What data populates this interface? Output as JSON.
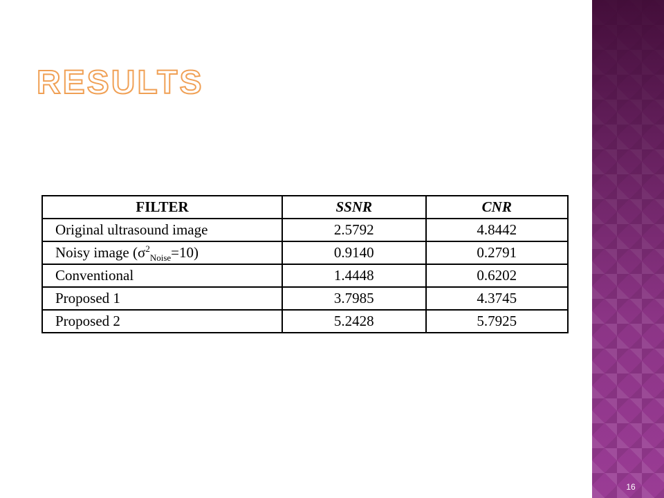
{
  "slide": {
    "title": "RESULTS",
    "number": "16"
  },
  "table": {
    "headers": [
      "FILTER",
      "SSNR",
      "CNR"
    ],
    "rows": [
      {
        "filter": "Original ultrasound image",
        "ssnr": "2.5792",
        "cnr": "4.8442"
      },
      {
        "filter_prefix": "Noisy image (",
        "filter_symbol": "σ",
        "filter_sup": "2",
        "filter_sub": "Noise",
        "filter_suffix": "=10)",
        "ssnr": "0.9140",
        "cnr": "0.2791"
      },
      {
        "filter": "Conventional",
        "ssnr": "1.4448",
        "cnr": "0.6202"
      },
      {
        "filter": "Proposed 1",
        "ssnr": "3.7985",
        "cnr": "4.3745"
      },
      {
        "filter": "Proposed 2",
        "ssnr": "5.2428",
        "cnr": "5.7925"
      }
    ]
  },
  "colors": {
    "title_outline": "#f0a055",
    "sidebar": "#9a3c95",
    "sidebar_top": "#4a0c3e"
  }
}
